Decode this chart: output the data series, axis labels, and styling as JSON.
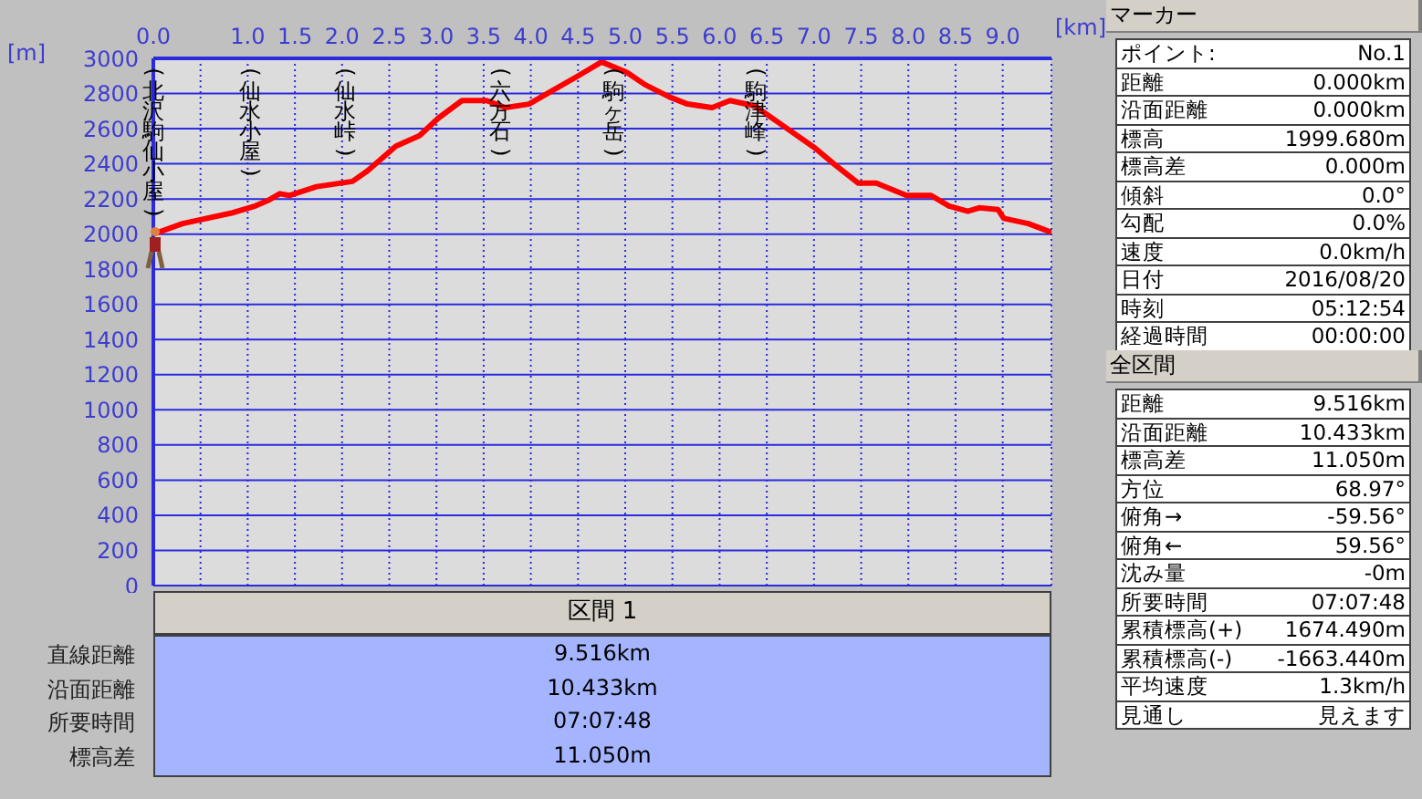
{
  "chart_data": [
    {
      "type": "line",
      "xlabel": "[km]",
      "ylabel": "[m]",
      "x": [
        0,
        0.31,
        0.83,
        1.08,
        1.21,
        1.34,
        1.44,
        1.73,
        2.11,
        2.27,
        2.57,
        2.82,
        3.02,
        3.27,
        3.53,
        3.73,
        3.98,
        4.24,
        4.5,
        4.75,
        5.02,
        5.21,
        5.47,
        5.66,
        5.92,
        6.11,
        6.37,
        6.69,
        7.01,
        7.21,
        7.47,
        7.66,
        7.98,
        8.24,
        8.43,
        8.63,
        8.75,
        8.95,
        9.01,
        9.27,
        9.516
      ],
      "series": [
        {
          "color": "#ff0000",
          "values": [
            2000,
            2060,
            2120,
            2160,
            2190,
            2230,
            2220,
            2270,
            2300,
            2360,
            2500,
            2560,
            2660,
            2760,
            2760,
            2720,
            2740,
            2820,
            2900,
            2980,
            2920,
            2850,
            2780,
            2740,
            2720,
            2760,
            2730,
            2610,
            2490,
            2400,
            2290,
            2290,
            2220,
            2220,
            2160,
            2130,
            2150,
            2140,
            2090,
            2060,
            2010
          ]
        }
      ],
      "xlim": [
        0,
        9.516
      ],
      "xticks": [
        {
          "value": 0,
          "label": "0.0"
        },
        {
          "value": 0.5,
          "label": null
        },
        {
          "value": 1,
          "label": "1.0"
        },
        {
          "value": 1.5,
          "label": "1.5"
        },
        {
          "value": 2,
          "label": "2.0"
        },
        {
          "value": 2.5,
          "label": "2.5"
        },
        {
          "value": 3,
          "label": "3.0"
        },
        {
          "value": 3.5,
          "label": "3.5"
        },
        {
          "value": 4,
          "label": "4.0"
        },
        {
          "value": 4.5,
          "label": "4.5"
        },
        {
          "value": 5,
          "label": "5.0"
        },
        {
          "value": 5.5,
          "label": "5.5"
        },
        {
          "value": 6,
          "label": "6.0"
        },
        {
          "value": 6.5,
          "label": "6.5"
        },
        {
          "value": 7,
          "label": "7.0"
        },
        {
          "value": 7.5,
          "label": "7.5"
        },
        {
          "value": 8,
          "label": "8.0"
        },
        {
          "value": 8.5,
          "label": "8.5"
        },
        {
          "value": 9,
          "label": "9.0"
        }
      ],
      "ylim": [
        0,
        3000
      ],
      "yticks": [
        0,
        200,
        400,
        600,
        800,
        1000,
        1200,
        1400,
        1600,
        1800,
        2000,
        2200,
        2400,
        2600,
        2800,
        3000
      ],
      "grid": true,
      "marker": "none",
      "line_style": "solid",
      "annotations": [
        "(北沢駒仙小屋)",
        "(仙水小屋)",
        "(仙水峠)",
        "(六方石)",
        "(駒ヶ岳)",
        "(駒津峰)"
      ]
    },
    {
      "type": "other",
      "title": "マーカー",
      "annotations": [
        "ポイント:",
        "No.1",
        "距離",
        "0.000km",
        "沿面距離",
        "0.000km",
        "標高",
        "1999.680m",
        "標高差",
        "0.000m",
        "傾斜",
        "0.0°",
        "勾配",
        "0.0%",
        "速度",
        "0.0km/h",
        "日付",
        "2016/08/20",
        "時刻",
        "05:12:54",
        "経過時間",
        "00:00:00"
      ]
    },
    {
      "type": "other",
      "title": "全区間",
      "annotations": [
        "距離",
        "9.516km",
        "沿面距離",
        "10.433km",
        "標高差",
        "11.050m",
        "方位",
        "68.97°",
        "俯角→",
        "-59.56°",
        "俯角←",
        "59.56°",
        "沈み量",
        "-0m",
        "所要時間",
        "07:07:48",
        "累積標高(+)",
        "1674.490m",
        "累積標高(-)",
        "-1663.440m",
        "平均速度",
        "1.3km/h",
        "見通し",
        "見えます"
      ]
    },
    {
      "type": "other",
      "title": "区間 1",
      "annotations": [
        "直線距離",
        "9.516km",
        "沿面距離",
        "10.433km",
        "所要時間",
        "07:07:48",
        "標高差",
        "11.050m"
      ]
    }
  ]
}
